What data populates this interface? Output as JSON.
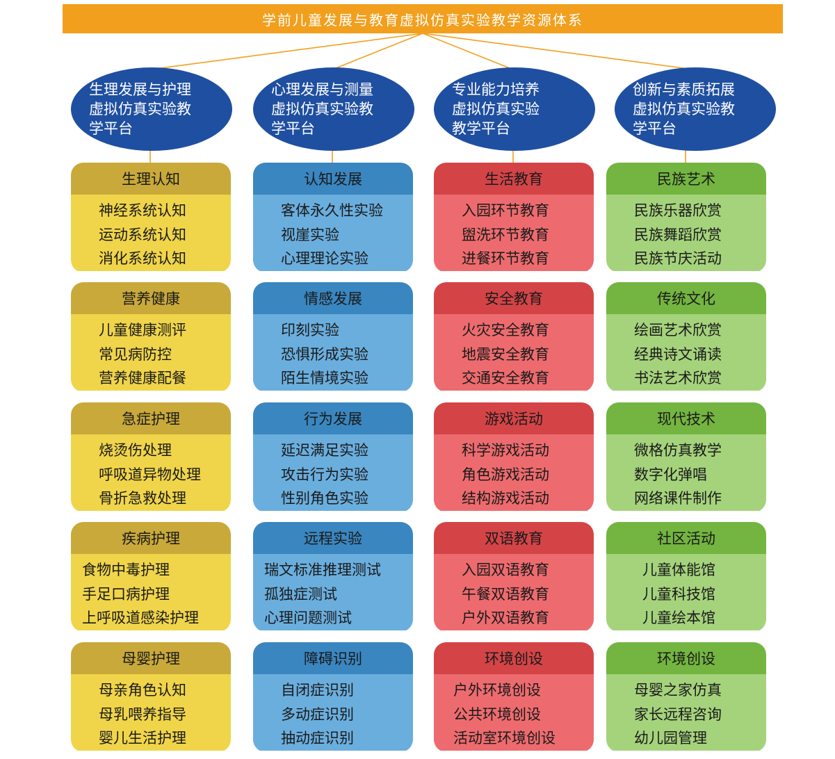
{
  "title": "学前儿童发展与教育虚拟仿真实验教学资源体系",
  "platforms": [
    "生理发展与护理\n虚拟仿真实验教\n学平台",
    "心理发展与测量\n虚拟仿真实验教\n学平台",
    "专业能力培养\n虚拟仿真实验\n教学平台",
    "创新与素质拓展\n虚拟仿真实验教\n学平台"
  ],
  "columns": [
    {
      "theme": "yellow",
      "colors": {
        "head": "#c9a93a",
        "body": "#f0d54a"
      },
      "cards": [
        {
          "heading": "生理认知",
          "items": [
            "神经系统认知",
            "运动系统认知",
            "消化系统认知"
          ]
        },
        {
          "heading": "营养健康",
          "items": [
            "儿童健康测评",
            "常见病防控",
            "营养健康配餐"
          ]
        },
        {
          "heading": "急症护理",
          "items": [
            "烧烫伤处理",
            "呼吸道异物处理",
            "骨折急救处理"
          ]
        },
        {
          "heading": "疾病护理",
          "items": [
            "食物中毒护理",
            "手足口病护理",
            "上呼吸道感染护理"
          ]
        },
        {
          "heading": "母婴护理",
          "items": [
            "母亲角色认知",
            "母乳喂养指导",
            "婴儿生活护理"
          ]
        }
      ]
    },
    {
      "theme": "blue",
      "colors": {
        "head": "#3a86c0",
        "body": "#6aaede"
      },
      "cards": [
        {
          "heading": "认知发展",
          "items": [
            "客体永久性实验",
            "视崖实验",
            "心理理论实验"
          ]
        },
        {
          "heading": "情感发展",
          "items": [
            "印刻实验",
            "恐惧形成实验",
            "陌生情境实验"
          ]
        },
        {
          "heading": "行为发展",
          "items": [
            "延迟满足实验",
            "攻击行为实验",
            "性别角色实验"
          ]
        },
        {
          "heading": "远程实验",
          "items": [
            "瑞文标准推理测试",
            "孤独症测试",
            "心理问题测试"
          ]
        },
        {
          "heading": "障碍识别",
          "items": [
            "自闭症识别",
            "多动症识别",
            "抽动症识别"
          ]
        }
      ]
    },
    {
      "theme": "red",
      "colors": {
        "head": "#d44447",
        "body": "#ed6b6e"
      },
      "cards": [
        {
          "heading": "生活教育",
          "items": [
            "入园环节教育",
            "盥洗环节教育",
            "进餐环节教育"
          ]
        },
        {
          "heading": "安全教育",
          "items": [
            "火灾安全教育",
            "地震安全教育",
            "交通安全教育"
          ]
        },
        {
          "heading": "游戏活动",
          "items": [
            "科学游戏活动",
            "角色游戏活动",
            "结构游戏活动"
          ]
        },
        {
          "heading": "双语教育",
          "items": [
            "入园双语教育",
            "午餐双语教育",
            "户外双语教育"
          ]
        },
        {
          "heading": "环境创设",
          "items": [
            "户外环境创设",
            "公共环境创设",
            "活动室环境创设"
          ]
        }
      ]
    },
    {
      "theme": "green",
      "colors": {
        "head": "#73b540",
        "body": "#a5d37c"
      },
      "cards": [
        {
          "heading": "民族艺术",
          "items": [
            "民族乐器欣赏",
            "民族舞蹈欣赏",
            "民族节庆活动"
          ]
        },
        {
          "heading": "传统文化",
          "items": [
            "绘画艺术欣赏",
            "经典诗文诵读",
            "书法艺术欣赏"
          ]
        },
        {
          "heading": "现代技术",
          "items": [
            "微格仿真教学",
            "数字化弹唱",
            "网络课件制作"
          ]
        },
        {
          "heading": "社区活动",
          "items": [
            "儿童体能馆",
            "儿童科技馆",
            "儿童绘本馆"
          ]
        },
        {
          "heading": "环境创设",
          "items": [
            "母婴之家仿真",
            "家长远程咨询",
            "幼儿园管理"
          ]
        }
      ]
    }
  ],
  "colors": {
    "title_bar": "#f29f1d",
    "platform": "#1f4fa0",
    "connector": "#f29f1d"
  }
}
